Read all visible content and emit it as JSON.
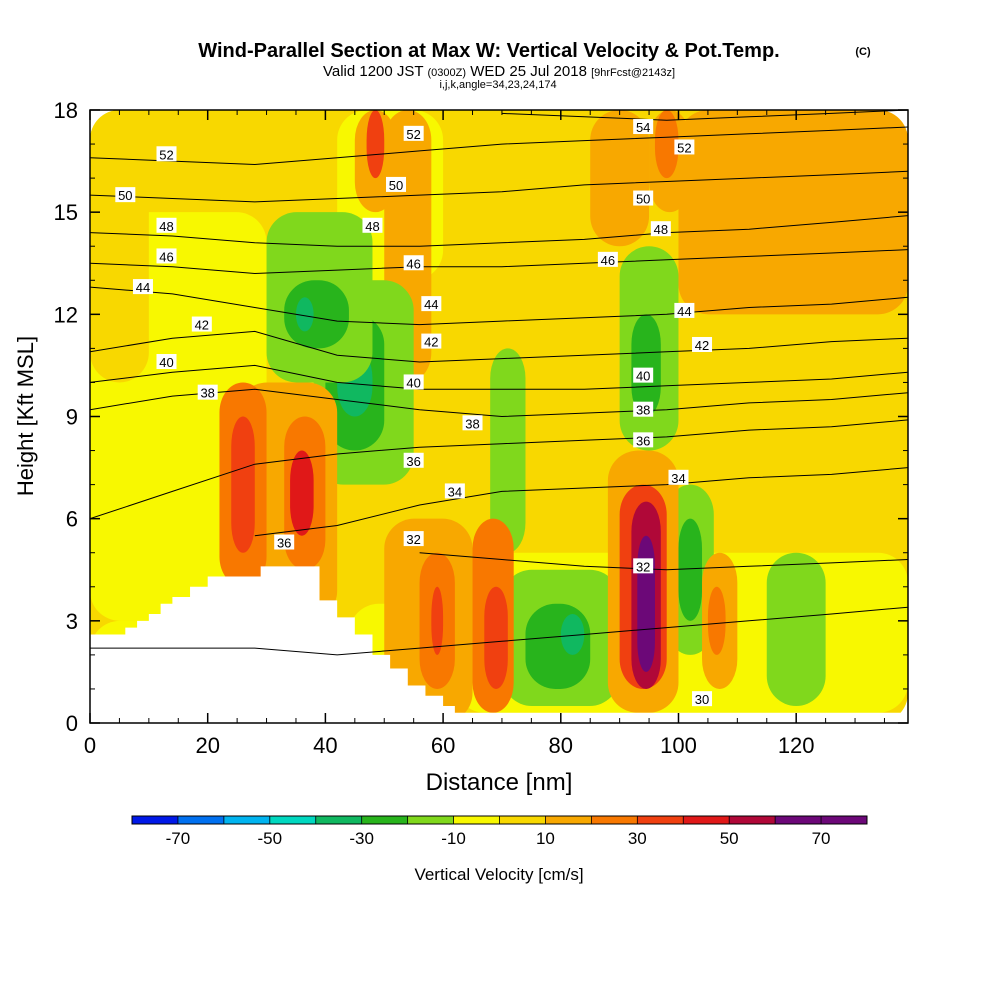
{
  "header": {
    "title_main": "Wind-Parallel Section at Max W: Vertical Velocity & Pot.Temp.",
    "title_mark": "(C)",
    "subtitle_pre": "Valid 1200 JST",
    "subtitle_z": "(0300Z)",
    "subtitle_date": "WED 25 Jul 2018",
    "subtitle_fcst": "[9hrFcst@2143z]",
    "subtitle_line3": "i,j,k,angle=34,23,24,174"
  },
  "chart_data": {
    "type": "heatmap",
    "xlabel": "Distance [nm]",
    "ylabel": "Height [Kft MSL]",
    "xlim": [
      0,
      139
    ],
    "ylim": [
      0,
      18
    ],
    "x_ticks": [
      0,
      20,
      40,
      60,
      80,
      100,
      120
    ],
    "y_ticks": [
      0,
      3,
      6,
      9,
      12,
      15,
      18
    ],
    "colorbar": {
      "label": "Vertical Velocity [cm/s]",
      "bounds": [
        -80,
        -70,
        -60,
        -50,
        -40,
        -30,
        -20,
        -10,
        0,
        10,
        20,
        30,
        40,
        50,
        60,
        70,
        80
      ],
      "colors": [
        "#0018e8",
        "#0070f0",
        "#00b4f0",
        "#00d8c0",
        "#10b860",
        "#28b41c",
        "#80d81c",
        "#f8f800",
        "#f8d800",
        "#f8a800",
        "#f87800",
        "#f04010",
        "#e01818",
        "#b00838",
        "#6c0878",
        "#6c0878"
      ],
      "tick_labels": [
        -70,
        -50,
        -30,
        -10,
        10,
        30,
        50,
        70
      ]
    },
    "terrain_profile": [
      [
        0,
        2.6
      ],
      [
        6,
        2.6
      ],
      [
        6,
        2.8
      ],
      [
        8,
        2.8
      ],
      [
        8,
        3.0
      ],
      [
        10,
        3.0
      ],
      [
        10,
        3.2
      ],
      [
        12,
        3.2
      ],
      [
        12,
        3.5
      ],
      [
        14,
        3.5
      ],
      [
        14,
        3.7
      ],
      [
        17,
        3.7
      ],
      [
        17,
        4.0
      ],
      [
        20,
        4.0
      ],
      [
        20,
        4.3
      ],
      [
        29,
        4.3
      ],
      [
        29,
        4.6
      ],
      [
        39,
        4.6
      ],
      [
        39,
        3.6
      ],
      [
        42,
        3.6
      ],
      [
        42,
        3.1
      ],
      [
        45,
        3.1
      ],
      [
        45,
        2.6
      ],
      [
        48,
        2.6
      ],
      [
        48,
        2.0
      ],
      [
        51,
        2.0
      ],
      [
        51,
        1.6
      ],
      [
        54,
        1.6
      ],
      [
        54,
        1.1
      ],
      [
        57,
        1.1
      ],
      [
        57,
        0.8
      ],
      [
        60,
        0.8
      ],
      [
        60,
        0.5
      ],
      [
        62,
        0.5
      ],
      [
        62,
        0.3
      ],
      [
        139,
        0.3
      ]
    ],
    "velocity_regions": [
      {
        "x": [
          0,
          139
        ],
        "y": [
          0,
          18
        ],
        "v": 5
      },
      {
        "x": [
          0,
          30
        ],
        "y": [
          3,
          15
        ],
        "v": -5
      },
      {
        "x": [
          44,
          65
        ],
        "y": [
          0.5,
          3.5
        ],
        "v": -5
      },
      {
        "x": [
          62,
          139
        ],
        "y": [
          0.3,
          5
        ],
        "v": -5
      },
      {
        "x": [
          42,
          60
        ],
        "y": [
          13,
          18
        ],
        "v": -5
      },
      {
        "x": [
          0,
          10
        ],
        "y": [
          10,
          18
        ],
        "v": 5
      },
      {
        "x": [
          50,
          58
        ],
        "y": [
          10,
          18
        ],
        "v": 15
      },
      {
        "x": [
          85,
          95
        ],
        "y": [
          14,
          18
        ],
        "v": 15
      },
      {
        "x": [
          100,
          139
        ],
        "y": [
          12,
          18
        ],
        "v": 15
      },
      {
        "x": [
          0,
          20
        ],
        "y": [
          0,
          3
        ],
        "v": -5
      },
      {
        "x": [
          70,
          90
        ],
        "y": [
          0.5,
          4.5
        ],
        "v": -15
      },
      {
        "x": [
          74,
          85
        ],
        "y": [
          1,
          3.5
        ],
        "v": -25
      },
      {
        "x": [
          80,
          84
        ],
        "y": [
          2,
          3.2
        ],
        "v": -35
      },
      {
        "x": [
          98,
          106
        ],
        "y": [
          2,
          7
        ],
        "v": -15
      },
      {
        "x": [
          100,
          104
        ],
        "y": [
          3,
          6
        ],
        "v": -25
      },
      {
        "x": [
          115,
          125
        ],
        "y": [
          0.5,
          5
        ],
        "v": -15
      },
      {
        "x": [
          38,
          55
        ],
        "y": [
          7,
          13
        ],
        "v": -15
      },
      {
        "x": [
          40,
          50
        ],
        "y": [
          8,
          12
        ],
        "v": -25
      },
      {
        "x": [
          42,
          48
        ],
        "y": [
          9,
          11
        ],
        "v": -35
      },
      {
        "x": [
          30,
          48
        ],
        "y": [
          10,
          15
        ],
        "v": -15
      },
      {
        "x": [
          33,
          44
        ],
        "y": [
          11,
          13
        ],
        "v": -25
      },
      {
        "x": [
          35,
          38
        ],
        "y": [
          11.5,
          12.5
        ],
        "v": -35
      },
      {
        "x": [
          90,
          100
        ],
        "y": [
          8,
          14
        ],
        "v": -15
      },
      {
        "x": [
          92,
          97
        ],
        "y": [
          9,
          12
        ],
        "v": -25
      },
      {
        "x": [
          68,
          74
        ],
        "y": [
          5,
          11
        ],
        "v": -15
      },
      {
        "x": [
          25,
          42
        ],
        "y": [
          3,
          10
        ],
        "v": 15
      },
      {
        "x": [
          22,
          30
        ],
        "y": [
          4,
          10
        ],
        "v": 25
      },
      {
        "x": [
          24,
          28
        ],
        "y": [
          5,
          9
        ],
        "v": 35
      },
      {
        "x": [
          33,
          40
        ],
        "y": [
          4.5,
          9
        ],
        "v": 25
      },
      {
        "x": [
          34,
          38
        ],
        "y": [
          5.5,
          8
        ],
        "v": 45
      },
      {
        "x": [
          50,
          65
        ],
        "y": [
          0,
          6
        ],
        "v": 15
      },
      {
        "x": [
          56,
          62
        ],
        "y": [
          1,
          5
        ],
        "v": 25
      },
      {
        "x": [
          58,
          60
        ],
        "y": [
          2,
          4
        ],
        "v": 35
      },
      {
        "x": [
          65,
          72
        ],
        "y": [
          0.3,
          6
        ],
        "v": 25
      },
      {
        "x": [
          67,
          71
        ],
        "y": [
          1,
          4
        ],
        "v": 35
      },
      {
        "x": [
          88,
          100
        ],
        "y": [
          0.3,
          8
        ],
        "v": 15
      },
      {
        "x": [
          90,
          98
        ],
        "y": [
          1,
          7
        ],
        "v": 35
      },
      {
        "x": [
          92,
          97
        ],
        "y": [
          1,
          6.5
        ],
        "v": 55
      },
      {
        "x": [
          93,
          96
        ],
        "y": [
          1.5,
          5.5
        ],
        "v": 65
      },
      {
        "x": [
          94,
          96
        ],
        "y": [
          2,
          5
        ],
        "v": 75
      },
      {
        "x": [
          104,
          110
        ],
        "y": [
          1,
          5
        ],
        "v": 15
      },
      {
        "x": [
          105,
          108
        ],
        "y": [
          2,
          4
        ],
        "v": 25
      },
      {
        "x": [
          45,
          52
        ],
        "y": [
          15,
          18
        ],
        "v": 15
      },
      {
        "x": [
          47,
          50
        ],
        "y": [
          16,
          18
        ],
        "v": 35
      },
      {
        "x": [
          95,
          102
        ],
        "y": [
          15,
          18
        ],
        "v": 15
      },
      {
        "x": [
          96,
          100
        ],
        "y": [
          16,
          18
        ],
        "v": 25
      }
    ],
    "theta_contours": [
      {
        "label": "30",
        "y": [
          2.2,
          2.2,
          2.2,
          2.0,
          2.2,
          2.4,
          2.6,
          2.8,
          3.0,
          3.2,
          3.4
        ]
      },
      {
        "label": "32",
        "y": [
          null,
          null,
          null,
          null,
          5.0,
          4.8,
          4.6,
          4.5,
          4.6,
          4.7,
          4.8
        ]
      },
      {
        "label": "34",
        "y": [
          null,
          null,
          5.5,
          5.8,
          6.4,
          6.8,
          6.9,
          7.0,
          7.2,
          7.3,
          7.5
        ]
      },
      {
        "label": "36",
        "y": [
          6.0,
          6.8,
          7.6,
          7.9,
          8.1,
          8.2,
          8.3,
          8.4,
          8.6,
          8.7,
          8.9
        ]
      },
      {
        "label": "38",
        "y": [
          9.2,
          9.6,
          9.8,
          9.5,
          9.2,
          9.0,
          9.1,
          9.2,
          9.4,
          9.5,
          9.7
        ]
      },
      {
        "label": "40",
        "y": [
          10.0,
          10.3,
          10.5,
          10.0,
          9.8,
          9.8,
          9.8,
          9.9,
          10.0,
          10.1,
          10.3
        ]
      },
      {
        "label": "42",
        "y": [
          10.9,
          11.3,
          11.5,
          10.8,
          10.6,
          10.7,
          10.8,
          10.9,
          11.0,
          11.2,
          11.3
        ]
      },
      {
        "label": "44",
        "y": [
          12.8,
          12.6,
          12.2,
          11.8,
          11.7,
          11.8,
          11.9,
          12.0,
          12.2,
          12.3,
          12.5
        ]
      },
      {
        "label": "46",
        "y": [
          13.5,
          13.4,
          13.2,
          13.3,
          13.4,
          13.4,
          13.5,
          13.6,
          13.7,
          13.8,
          13.9
        ]
      },
      {
        "label": "48",
        "y": [
          14.4,
          14.3,
          14.1,
          14.0,
          14.0,
          14.1,
          14.2,
          14.4,
          14.5,
          14.7,
          14.9
        ]
      },
      {
        "label": "50",
        "y": [
          15.5,
          15.4,
          15.3,
          15.4,
          15.5,
          15.6,
          15.8,
          15.9,
          16.0,
          16.1,
          16.2
        ]
      },
      {
        "label": "52",
        "y": [
          16.6,
          16.5,
          16.4,
          16.6,
          16.8,
          17.0,
          17.1,
          17.2,
          17.3,
          17.4,
          17.5
        ]
      },
      {
        "label": "54",
        "y": [
          null,
          null,
          null,
          null,
          null,
          17.9,
          17.8,
          17.7,
          17.8,
          17.9,
          18.0
        ]
      }
    ],
    "contour_x": [
      0,
      14,
      28,
      42,
      56,
      70,
      84,
      98,
      112,
      126,
      139
    ],
    "contour_label_positions": [
      {
        "label": "52",
        "x": 13,
        "y": 16.7
      },
      {
        "label": "50",
        "x": 6,
        "y": 15.5
      },
      {
        "label": "48",
        "x": 13,
        "y": 14.6
      },
      {
        "label": "46",
        "x": 13,
        "y": 13.7
      },
      {
        "label": "44",
        "x": 9,
        "y": 12.8
      },
      {
        "label": "42",
        "x": 19,
        "y": 11.7
      },
      {
        "label": "40",
        "x": 13,
        "y": 10.6
      },
      {
        "label": "38",
        "x": 20,
        "y": 9.7
      },
      {
        "label": "36",
        "x": 33,
        "y": 5.3
      },
      {
        "label": "52",
        "x": 55,
        "y": 17.3
      },
      {
        "label": "50",
        "x": 52,
        "y": 15.8
      },
      {
        "label": "48",
        "x": 48,
        "y": 14.6
      },
      {
        "label": "46",
        "x": 55,
        "y": 13.5
      },
      {
        "label": "44",
        "x": 58,
        "y": 12.3
      },
      {
        "label": "42",
        "x": 58,
        "y": 11.2
      },
      {
        "label": "40",
        "x": 55,
        "y": 10.0
      },
      {
        "label": "38",
        "x": 65,
        "y": 8.8
      },
      {
        "label": "36",
        "x": 55,
        "y": 7.7
      },
      {
        "label": "34",
        "x": 62,
        "y": 6.8
      },
      {
        "label": "32",
        "x": 55,
        "y": 5.4
      },
      {
        "label": "54",
        "x": 94,
        "y": 17.5
      },
      {
        "label": "52",
        "x": 101,
        "y": 16.9
      },
      {
        "label": "50",
        "x": 94,
        "y": 15.4
      },
      {
        "label": "48",
        "x": 97,
        "y": 14.5
      },
      {
        "label": "46",
        "x": 88,
        "y": 13.6
      },
      {
        "label": "44",
        "x": 101,
        "y": 12.1
      },
      {
        "label": "42",
        "x": 104,
        "y": 11.1
      },
      {
        "label": "40",
        "x": 94,
        "y": 10.2
      },
      {
        "label": "38",
        "x": 94,
        "y": 9.2
      },
      {
        "label": "36",
        "x": 94,
        "y": 8.3
      },
      {
        "label": "34",
        "x": 100,
        "y": 7.2
      },
      {
        "label": "32",
        "x": 94,
        "y": 4.6
      },
      {
        "label": "30",
        "x": 104,
        "y": 0.7
      }
    ]
  }
}
